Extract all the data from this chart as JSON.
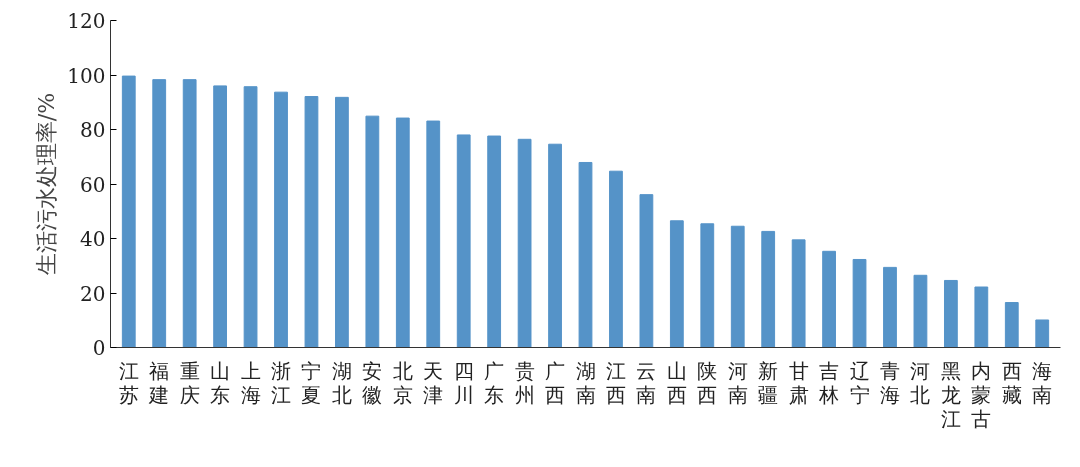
{
  "chart_data": {
    "type": "bar",
    "ylabel": "生活污水处理率/%",
    "categories": [
      "江苏",
      "福建",
      "重庆",
      "山东",
      "上海",
      "浙江",
      "宁夏",
      "湖北",
      "安徽",
      "北京",
      "天津",
      "四川",
      "广东",
      "贵州",
      "广西",
      "湖南",
      "江西",
      "云南",
      "山西",
      "陕西",
      "河南",
      "新疆",
      "甘肃",
      "吉林",
      "辽宁",
      "青海",
      "河北",
      "黑龙江",
      "内蒙古",
      "西藏",
      "海南"
    ],
    "values": [
      99.6,
      98.3,
      98.3,
      96.0,
      95.7,
      93.7,
      92.1,
      91.8,
      84.9,
      84.2,
      83.1,
      78.0,
      77.6,
      76.4,
      74.6,
      67.9,
      64.7,
      56.1,
      46.5,
      45.4,
      44.5,
      42.6,
      39.5,
      35.3,
      32.3,
      29.4,
      26.5,
      24.6,
      22.2,
      16.5,
      10.1
    ],
    "color": "#5593c8",
    "ylim": [
      0,
      120
    ],
    "yticks": [
      0,
      20,
      40,
      60,
      80,
      100,
      120
    ],
    "grid": false
  }
}
